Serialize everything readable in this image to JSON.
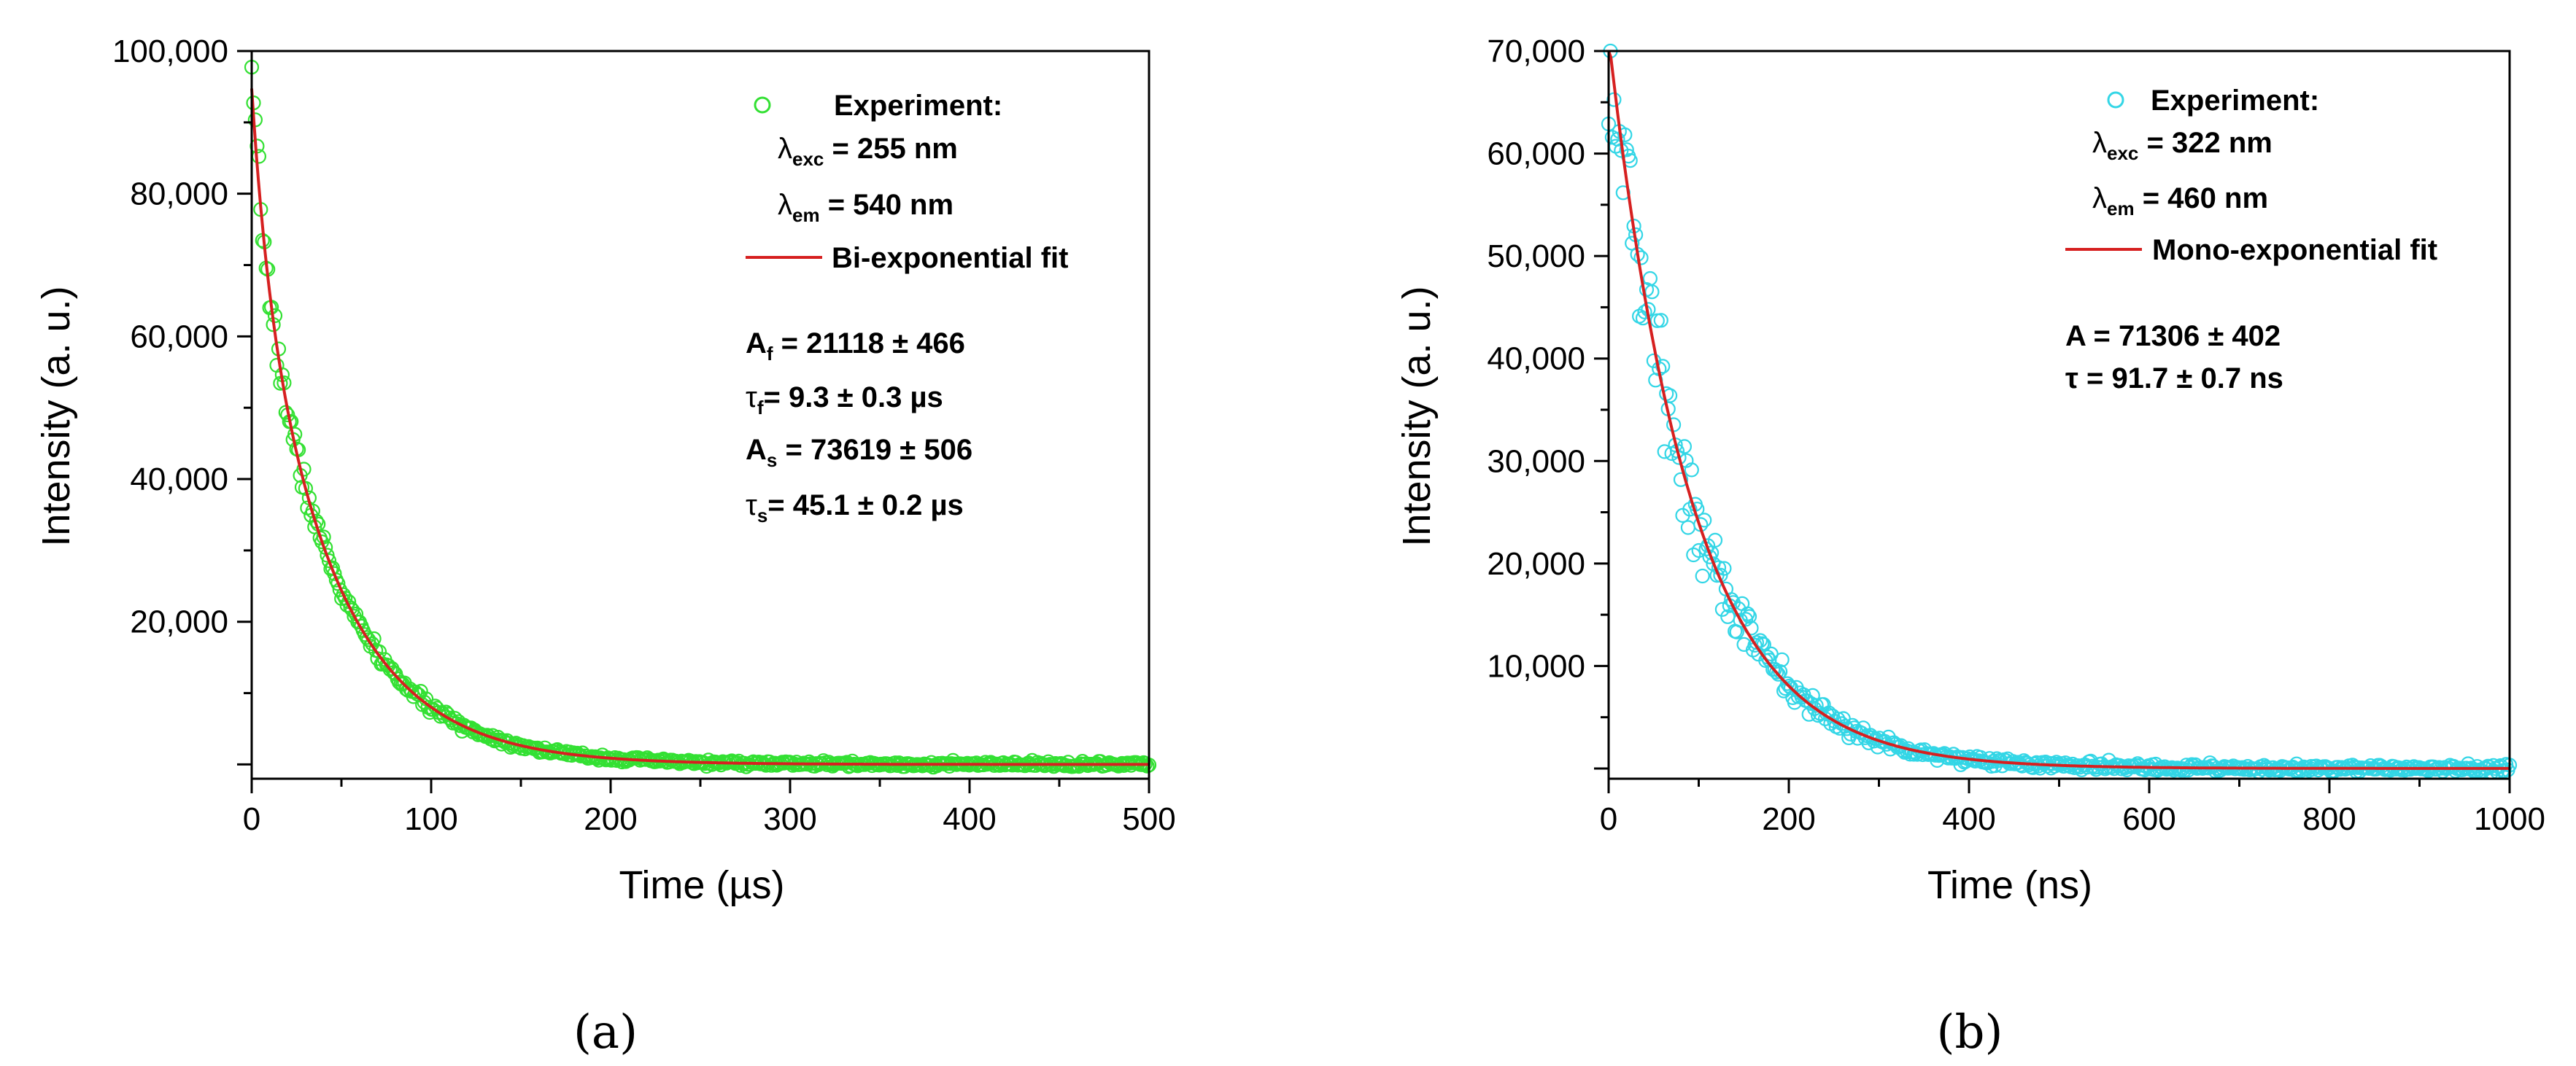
{
  "chart_data": [
    {
      "type": "scatter",
      "panel_label": "(a)",
      "xlabel": "Time (µs)",
      "ylabel": "Intensity (a. u.)",
      "xlim": [
        0,
        500
      ],
      "ylim": [
        -2000,
        100000
      ],
      "xticks": [
        0,
        100,
        200,
        300,
        400,
        500
      ],
      "xtick_labels": [
        "0",
        "100",
        "200",
        "300",
        "400",
        "500"
      ],
      "yticks": [
        20000,
        40000,
        60000,
        80000,
        100000
      ],
      "ytick_labels": [
        "20,000",
        "40,000",
        "60,000",
        "80,000",
        "100,000"
      ],
      "series": [
        {
          "name": "Experiment:",
          "kind": "scatter",
          "marker": "open-circle",
          "color": "#33e033",
          "model": "bi-exponential",
          "A_f": 21118,
          "tau_f": 9.3,
          "A_s": 73619,
          "tau_s": 45.1,
          "x_range": [
            0,
            500
          ],
          "n_points": 500,
          "noise": 0.02
        },
        {
          "name": "Bi-exponential fit",
          "kind": "line",
          "color": "#d62020",
          "model": "bi-exponential",
          "A_f": 21118,
          "tau_f": 9.3,
          "A_s": 73619,
          "tau_s": 45.1,
          "x_range": [
            0,
            500
          ]
        }
      ],
      "legend": {
        "experiment": "Experiment:",
        "lambda_exc_val": " = 255 nm",
        "lambda_em_val": " = 540 nm",
        "fit": "Bi-exponential fit"
      },
      "annotation": {
        "a_f": " = 21118 ± 466",
        "tau_f": "= 9.3 ± 0.3 µs",
        "a_s": " = 73619 ± 506",
        "tau_s": "= 45.1 ± 0.2 µs"
      }
    },
    {
      "type": "scatter",
      "panel_label": "(b)",
      "xlabel": "Time (ns)",
      "ylabel": "Intensity (a. u.)",
      "xlim": [
        0,
        1000
      ],
      "ylim": [
        -1000,
        70000
      ],
      "xticks": [
        0,
        200,
        400,
        600,
        800,
        1000
      ],
      "xtick_labels": [
        "0",
        "200",
        "400",
        "600",
        "800",
        "1000"
      ],
      "yticks": [
        10000,
        20000,
        30000,
        40000,
        50000,
        60000,
        70000
      ],
      "ytick_labels": [
        "10,000",
        "20,000",
        "30,000",
        "40,000",
        "50,000",
        "60,000",
        "70,000"
      ],
      "series": [
        {
          "name": "Experiment:",
          "kind": "scatter",
          "marker": "open-circle",
          "color": "#33d6e6",
          "model": "mono-exponential",
          "A": 71306,
          "tau": 91.7,
          "x_range": [
            0,
            1000
          ],
          "n_points": 500,
          "noise": 0.07
        },
        {
          "name": "Mono-exponential fit",
          "kind": "line",
          "color": "#d62020",
          "model": "mono-exponential",
          "A": 71306,
          "tau": 91.7,
          "x_range": [
            0,
            1000
          ]
        }
      ],
      "legend": {
        "experiment": "Experiment:",
        "lambda_exc_val": " = 322 nm",
        "lambda_em_val": " = 460 nm",
        "fit": "Mono-exponential fit"
      },
      "annotation": {
        "a": "A = 71306 ± 402",
        "tau": "τ = 91.7 ±  0.7 ns"
      }
    }
  ],
  "symbols": {
    "lambda": "λ",
    "tau": "τ",
    "A": "A",
    "exc": "exc",
    "em": "em",
    "f": "f",
    "s": "s"
  }
}
